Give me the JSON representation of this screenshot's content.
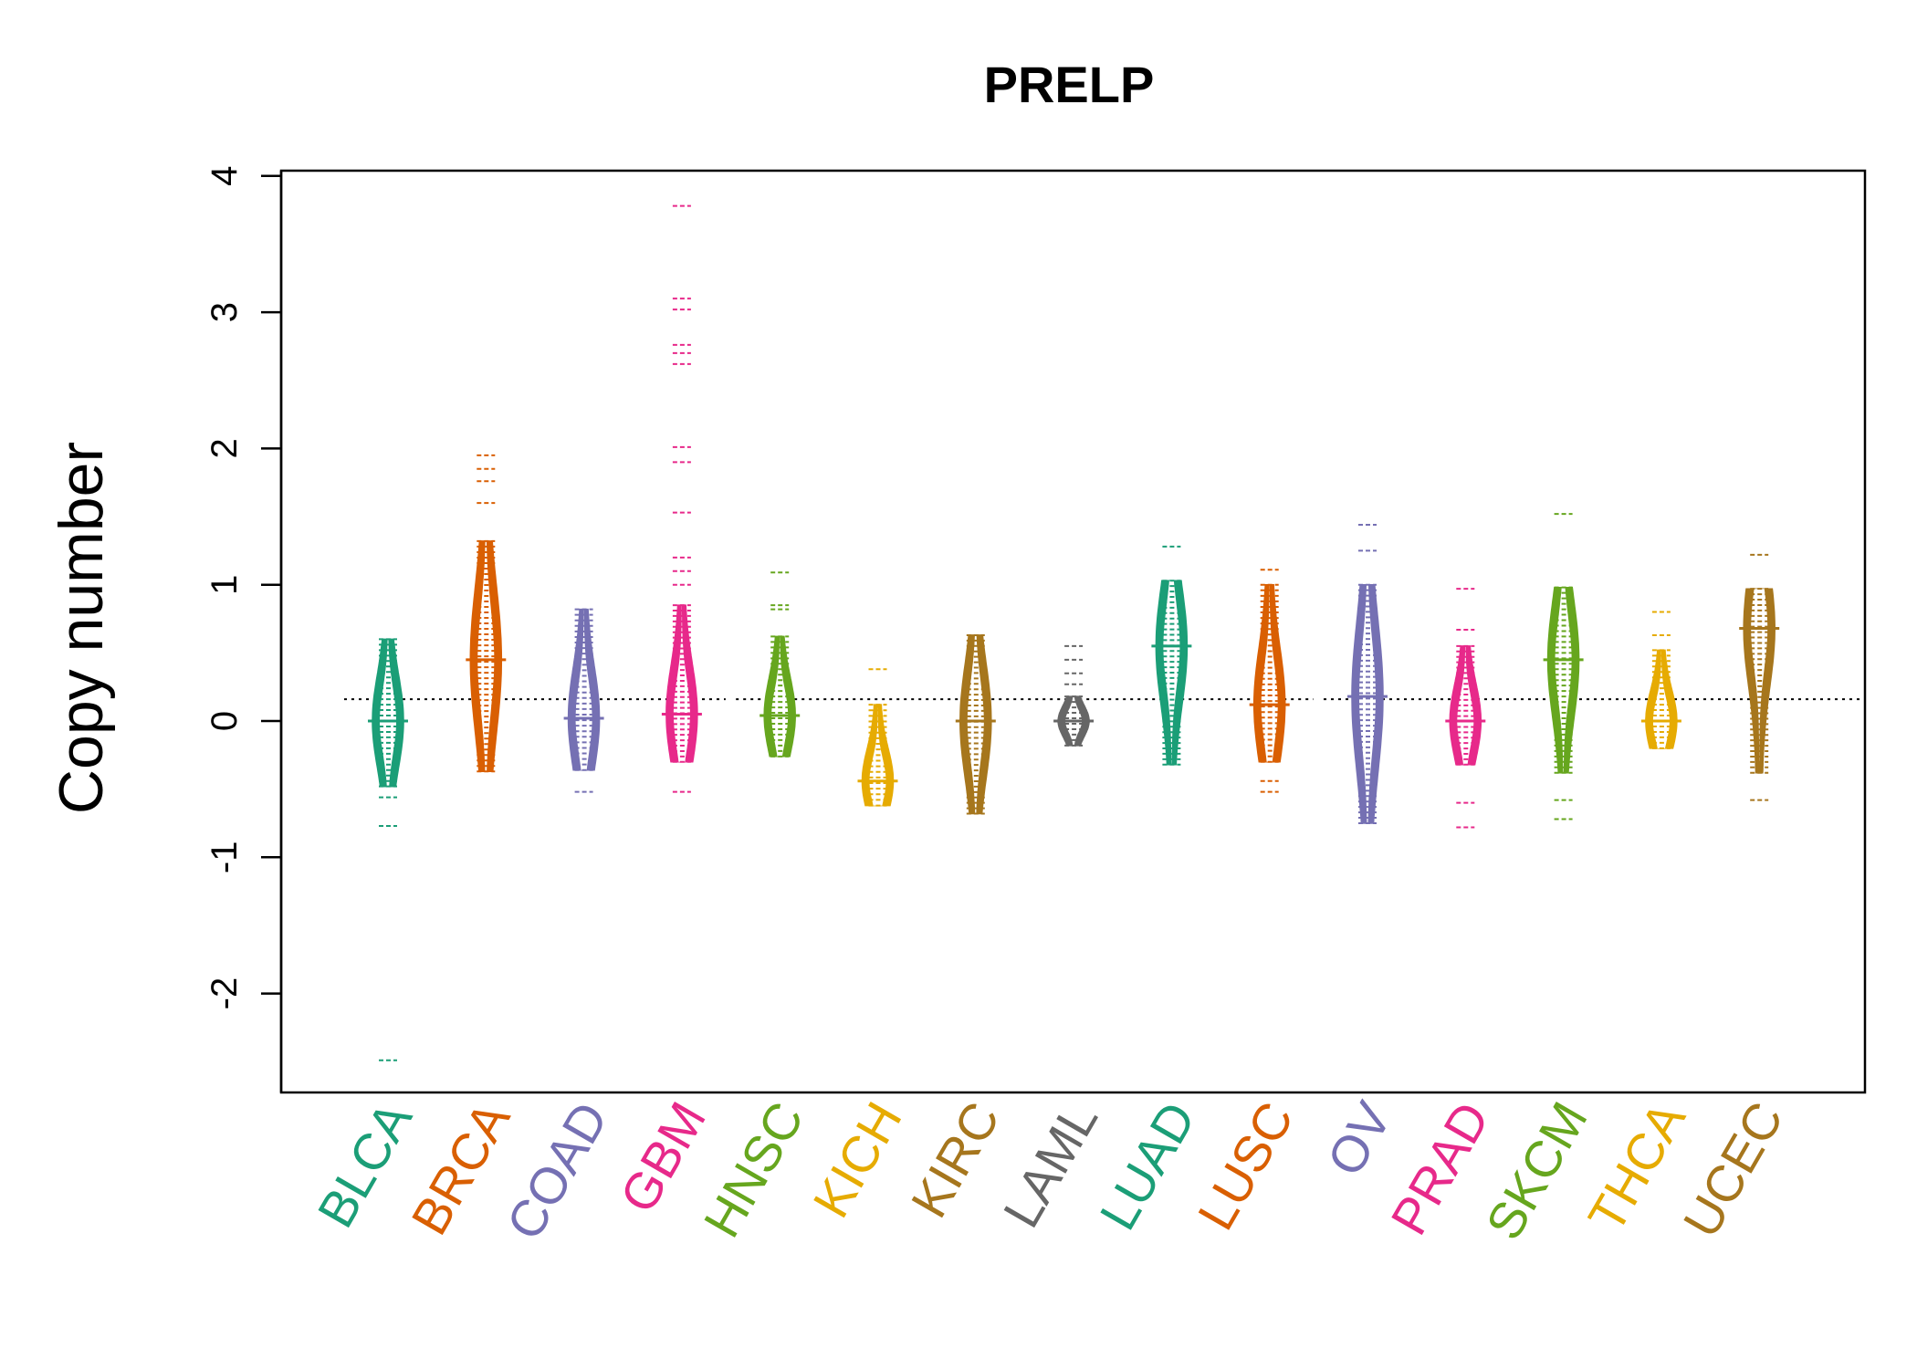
{
  "chart_data": {
    "type": "beanplot",
    "title": "PRELP",
    "ylabel": "Copy number",
    "xlabel": "",
    "ylim": [
      -2.75,
      4.05
    ],
    "yticks": [
      -2,
      -1,
      0,
      1,
      2,
      3,
      4
    ],
    "ytick_labels": [
      "-2",
      "-1",
      "0",
      "1",
      "2",
      "3",
      "4"
    ],
    "reference_line": 0.16,
    "grid": false,
    "categories": [
      "BLCA",
      "BRCA",
      "COAD",
      "GBM",
      "HNSC",
      "KICH",
      "KIRC",
      "LAML",
      "LUAD",
      "LUSC",
      "OV",
      "PRAD",
      "SKCM",
      "THCA",
      "UCEC"
    ],
    "colors": [
      "#1B9E77",
      "#D95F02",
      "#7570B3",
      "#E7298A",
      "#66A61E",
      "#E6AB02",
      "#A6761D",
      "#666666",
      "#1B9E77",
      "#D95F02",
      "#7570B3",
      "#E7298A",
      "#66A61E",
      "#E6AB02",
      "#A6761D"
    ],
    "series": [
      {
        "category": "BLCA",
        "median": 0.0,
        "min": -0.48,
        "max": 0.6,
        "outliers": [
          -0.56,
          -0.77,
          -2.49
        ]
      },
      {
        "category": "BRCA",
        "median": 0.45,
        "min": -0.37,
        "max": 1.32,
        "outliers": [
          1.6,
          1.76,
          1.85,
          1.95
        ]
      },
      {
        "category": "COAD",
        "median": 0.02,
        "min": -0.36,
        "max": 0.82,
        "outliers": [
          -0.52
        ]
      },
      {
        "category": "GBM",
        "median": 0.05,
        "min": -0.3,
        "max": 0.85,
        "outliers": [
          -0.52,
          1.0,
          1.1,
          1.2,
          1.53,
          1.9,
          2.01,
          2.62,
          2.7,
          2.76,
          3.02,
          3.1,
          3.78
        ]
      },
      {
        "category": "HNSC",
        "median": 0.04,
        "min": -0.26,
        "max": 0.62,
        "outliers": [
          0.82,
          0.85,
          1.09
        ]
      },
      {
        "category": "KICH",
        "median": -0.44,
        "min": -0.62,
        "max": 0.12,
        "outliers": [
          0.38
        ]
      },
      {
        "category": "KIRC",
        "median": 0.0,
        "min": -0.68,
        "max": 0.63,
        "outliers": []
      },
      {
        "category": "LAML",
        "median": 0.0,
        "min": -0.18,
        "max": 0.18,
        "outliers": [
          0.27,
          0.35,
          0.45,
          0.55
        ]
      },
      {
        "category": "LUAD",
        "median": 0.55,
        "min": -0.32,
        "max": 1.03,
        "outliers": [
          1.28
        ]
      },
      {
        "category": "LUSC",
        "median": 0.12,
        "min": -0.3,
        "max": 1.0,
        "outliers": [
          -0.44,
          -0.52,
          1.11
        ]
      },
      {
        "category": "OV",
        "median": 0.18,
        "min": -0.75,
        "max": 1.0,
        "outliers": [
          1.25,
          1.44
        ]
      },
      {
        "category": "PRAD",
        "median": 0.0,
        "min": -0.32,
        "max": 0.55,
        "outliers": [
          -0.6,
          -0.78,
          0.67,
          0.97
        ]
      },
      {
        "category": "SKCM",
        "median": 0.45,
        "min": -0.38,
        "max": 0.98,
        "outliers": [
          -0.58,
          -0.72,
          1.52
        ]
      },
      {
        "category": "THCA",
        "median": 0.0,
        "min": -0.2,
        "max": 0.52,
        "outliers": [
          0.63,
          0.8
        ]
      },
      {
        "category": "UCEC",
        "median": 0.68,
        "min": -0.38,
        "max": 0.97,
        "outliers": [
          -0.58,
          1.22
        ]
      }
    ]
  }
}
